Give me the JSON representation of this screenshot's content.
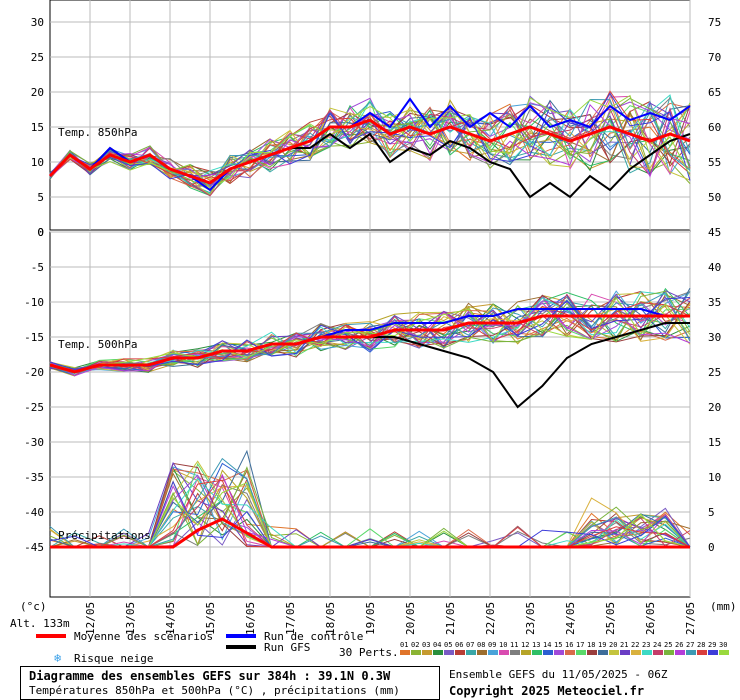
{
  "chart_data": {
    "type": "line",
    "x_dates": [
      "12/05",
      "13/05",
      "14/05",
      "15/05",
      "16/05",
      "17/05",
      "18/05",
      "19/05",
      "20/05",
      "21/05",
      "22/05",
      "23/05",
      "24/05",
      "25/05",
      "26/05",
      "27/05"
    ],
    "panels": {
      "t850": {
        "label": "Temp. 850hPa",
        "left_ticks": [
          "30",
          "25",
          "20",
          "15",
          "10",
          "5",
          "0"
        ],
        "right_ticks": [
          "75",
          "70",
          "65",
          "60",
          "55",
          "50"
        ],
        "ylim": [
          0,
          30
        ],
        "mean": [
          8,
          11,
          9,
          11,
          10,
          11,
          9,
          8,
          7,
          9,
          10,
          11,
          12,
          13,
          15,
          15,
          16,
          14,
          15,
          14,
          15,
          14,
          13,
          14,
          15,
          14,
          13,
          14,
          15,
          14,
          13,
          14,
          13
        ],
        "control": [
          8,
          11,
          9,
          12,
          10,
          11,
          9,
          8,
          6,
          9,
          10,
          11,
          12,
          13,
          15,
          15,
          17,
          15,
          19,
          15,
          18,
          15,
          17,
          15,
          18,
          15,
          16,
          15,
          18,
          16,
          17,
          16,
          18
        ],
        "gfs": [
          8,
          11,
          9,
          12,
          10,
          11,
          9,
          8,
          7,
          9,
          10,
          11,
          12,
          12,
          14,
          12,
          14,
          10,
          12,
          11,
          13,
          12,
          10,
          9,
          5,
          7,
          5,
          8,
          6,
          9,
          11,
          13,
          14
        ]
      },
      "t500": {
        "label": "Temp. 500hPa",
        "left_ticks": [
          "-5",
          "-10",
          "-15",
          "-20",
          "-25",
          "-30",
          "-35",
          "-40",
          "-45"
        ],
        "ylim": [
          -45,
          -2
        ],
        "mean": [
          -19,
          -20,
          -19,
          -19,
          -19,
          -18,
          -18,
          -17,
          -17,
          -16,
          -16,
          -15,
          -15,
          -15,
          -14,
          -14,
          -14,
          -13,
          -13,
          -13,
          -12,
          -12,
          -12,
          -12,
          -12,
          -12,
          -12
        ],
        "control": [
          -19,
          -20,
          -19,
          -19,
          -19,
          -18,
          -18,
          -17,
          -17,
          -16,
          -16,
          -15,
          -14,
          -14,
          -13,
          -13,
          -13,
          -12,
          -12,
          -11,
          -11,
          -11,
          -11,
          -11,
          -11,
          -12,
          -12
        ],
        "gfs": [
          -19,
          -20,
          -19,
          -19,
          -19,
          -18,
          -18,
          -17,
          -17,
          -16,
          -16,
          -15,
          -15,
          -15,
          -15,
          -16,
          -17,
          -18,
          -20,
          -25,
          -22,
          -18,
          -16,
          -15,
          -14,
          -13,
          -13
        ]
      },
      "precip": {
        "label": "Précipitations",
        "right_ticks": [
          "45",
          "40",
          "35",
          "30",
          "25",
          "20",
          "15",
          "10",
          "5",
          "0"
        ],
        "ylim": [
          0,
          45
        ],
        "mean": [
          0,
          0,
          0,
          0,
          0,
          0,
          0,
          0,
          0,
          0,
          0,
          0,
          0,
          0,
          0,
          0,
          0,
          0,
          0,
          0,
          0,
          0,
          0,
          0,
          0,
          0,
          0
        ],
        "control": [
          0,
          0,
          0,
          0,
          0,
          0,
          0,
          0,
          0,
          0,
          0,
          0,
          0,
          0,
          0,
          0,
          0,
          0,
          0,
          0,
          0,
          0,
          0,
          0,
          0,
          0,
          0
        ],
        "gfs": [
          0,
          0,
          0,
          0,
          0,
          0,
          0,
          0,
          0,
          0,
          0,
          0,
          0,
          0,
          0,
          0,
          0,
          0,
          0,
          0,
          0,
          0,
          0,
          0,
          0,
          0,
          0
        ],
        "mean_peak": 4
      }
    },
    "unit_left": "(°c)",
    "unit_right": "(mm)",
    "altitude": "Alt. 133m"
  },
  "legend": {
    "mean_label": "Moyenne des scénarios",
    "control_label": "Run de contrôle",
    "gfs_label": "Run GFS",
    "snow_label": "Risque neige",
    "perts_label": "30 Perts.",
    "pert_numbers": [
      "01",
      "02",
      "03",
      "04",
      "05",
      "06",
      "07",
      "08",
      "09",
      "10",
      "11",
      "12",
      "13",
      "14",
      "15",
      "16",
      "17",
      "18",
      "19",
      "20",
      "21",
      "22",
      "23",
      "24",
      "25",
      "26",
      "27",
      "28",
      "29",
      "30"
    ],
    "pert_colors": [
      "#e0742a",
      "#8bb433",
      "#c59a2f",
      "#2a8f3c",
      "#7a5bc4",
      "#b93d34",
      "#3aa7a7",
      "#9c6d2e",
      "#4aa3d9",
      "#d94bb0",
      "#7e7e7e",
      "#b6a428",
      "#2fbf66",
      "#2b5fd1",
      "#a04ad9",
      "#d96a4a",
      "#5ad96a",
      "#9a3d3d",
      "#3d6d9a",
      "#c4c43d",
      "#6a3dc4",
      "#d9b13d",
      "#3dd9c4",
      "#c43d6a",
      "#7ab43d",
      "#b43dd9",
      "#3d9ab4",
      "#d93d3d",
      "#3d3dd9",
      "#9ad93d"
    ],
    "mean_color": "#ff0000",
    "control_color": "#0000ff",
    "gfs_color": "#000000"
  },
  "footer": {
    "title": "Diagramme des ensembles GEFS sur 384h : 39.1N 0.3W",
    "subtitle": "Températures 850hPa et 500hPa (°C) , précipitations (mm)",
    "run_info": "Ensemble GEFS du 11/05/2025 - 06Z",
    "copyright": "Copyright 2025 Meteociel.fr"
  }
}
